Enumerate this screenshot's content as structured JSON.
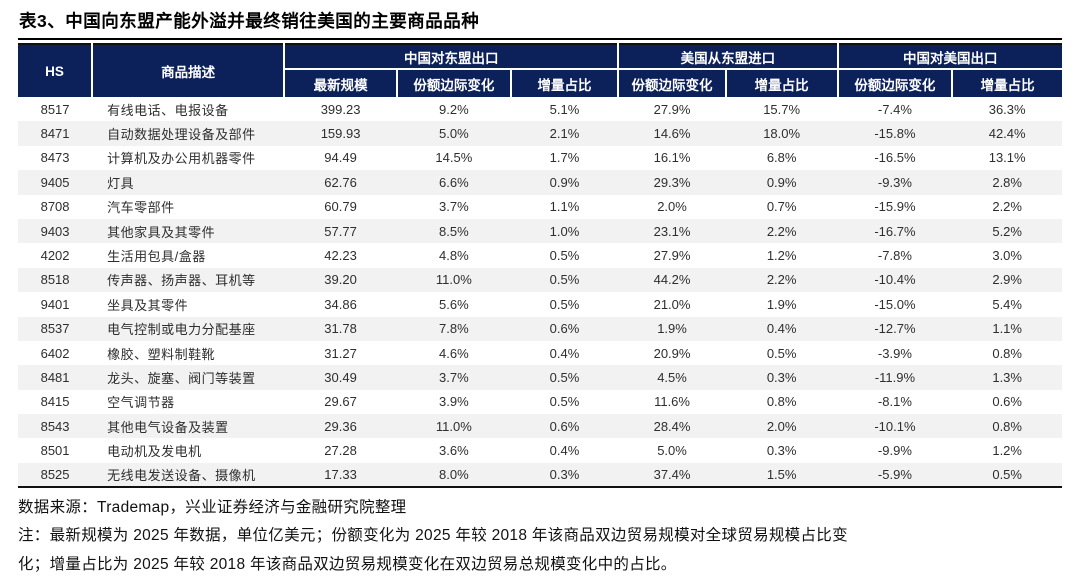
{
  "title": "表3、中国向东盟产能外溢并最终销往美国的主要商品品种",
  "colors": {
    "header_bg": "#0c2059",
    "stripe": "#f2f2f2",
    "rule": "#000000"
  },
  "table": {
    "headers": {
      "hs": "HS",
      "desc": "商品描述",
      "group_china_to_asean": "中国对东盟出口",
      "group_us_from_asean": "美国从东盟进口",
      "group_china_to_us": "中国对美国出口"
    },
    "sub_headers": [
      "最新规模",
      "份额边际变化",
      "增量占比",
      "份额边际变化",
      "增量占比",
      "份额边际变化",
      "增量占比"
    ],
    "rows": [
      [
        "8517",
        "有线电话、电报设备",
        "399.23",
        "9.2%",
        "5.1%",
        "27.9%",
        "15.7%",
        "-7.4%",
        "36.3%"
      ],
      [
        "8471",
        "自动数据处理设备及部件",
        "159.93",
        "5.0%",
        "2.1%",
        "14.6%",
        "18.0%",
        "-15.8%",
        "42.4%"
      ],
      [
        "8473",
        "计算机及办公用机器零件",
        "94.49",
        "14.5%",
        "1.7%",
        "16.1%",
        "6.8%",
        "-16.5%",
        "13.1%"
      ],
      [
        "9405",
        "灯具",
        "62.76",
        "6.6%",
        "0.9%",
        "29.3%",
        "0.9%",
        "-9.3%",
        "2.8%"
      ],
      [
        "8708",
        "汽车零部件",
        "60.79",
        "3.7%",
        "1.1%",
        "2.0%",
        "0.7%",
        "-15.9%",
        "2.2%"
      ],
      [
        "9403",
        "其他家具及其零件",
        "57.77",
        "8.5%",
        "1.0%",
        "23.1%",
        "2.2%",
        "-16.7%",
        "5.2%"
      ],
      [
        "4202",
        "生活用包具/盒器",
        "42.23",
        "4.8%",
        "0.5%",
        "27.9%",
        "1.2%",
        "-7.8%",
        "3.0%"
      ],
      [
        "8518",
        "传声器、扬声器、耳机等",
        "39.20",
        "11.0%",
        "0.5%",
        "44.2%",
        "2.2%",
        "-10.4%",
        "2.9%"
      ],
      [
        "9401",
        "坐具及其零件",
        "34.86",
        "5.6%",
        "0.5%",
        "21.0%",
        "1.9%",
        "-15.0%",
        "5.4%"
      ],
      [
        "8537",
        "电气控制或电力分配基座",
        "31.78",
        "7.8%",
        "0.6%",
        "1.9%",
        "0.4%",
        "-12.7%",
        "1.1%"
      ],
      [
        "6402",
        "橡胶、塑料制鞋靴",
        "31.27",
        "4.6%",
        "0.4%",
        "20.9%",
        "0.5%",
        "-3.9%",
        "0.8%"
      ],
      [
        "8481",
        "龙头、旋塞、阀门等装置",
        "30.49",
        "3.7%",
        "0.5%",
        "4.5%",
        "0.3%",
        "-11.9%",
        "1.3%"
      ],
      [
        "8415",
        "空气调节器",
        "29.67",
        "3.9%",
        "0.5%",
        "11.6%",
        "0.8%",
        "-8.1%",
        "0.6%"
      ],
      [
        "8543",
        "其他电气设备及装置",
        "29.36",
        "11.0%",
        "0.6%",
        "28.4%",
        "2.0%",
        "-10.1%",
        "0.8%"
      ],
      [
        "8501",
        "电动机及发电机",
        "27.28",
        "3.6%",
        "0.4%",
        "5.0%",
        "0.3%",
        "-9.9%",
        "1.2%"
      ],
      [
        "8525",
        "无线电发送设备、摄像机",
        "17.33",
        "8.0%",
        "0.3%",
        "37.4%",
        "1.5%",
        "-5.9%",
        "0.5%"
      ]
    ]
  },
  "footer": {
    "source": "数据来源：Trademap，兴业证券经济与金融研究院整理",
    "note_line1": "注：最新规模为 2025 年数据，单位亿美元；份额变化为 2025 年较 2018 年该商品双边贸易规模对全球贸易规模占比变",
    "note_line2": "化；增量占比为 2025 年较 2018 年该商品双边贸易规模变化在双边贸易总规模变化中的占比。"
  }
}
